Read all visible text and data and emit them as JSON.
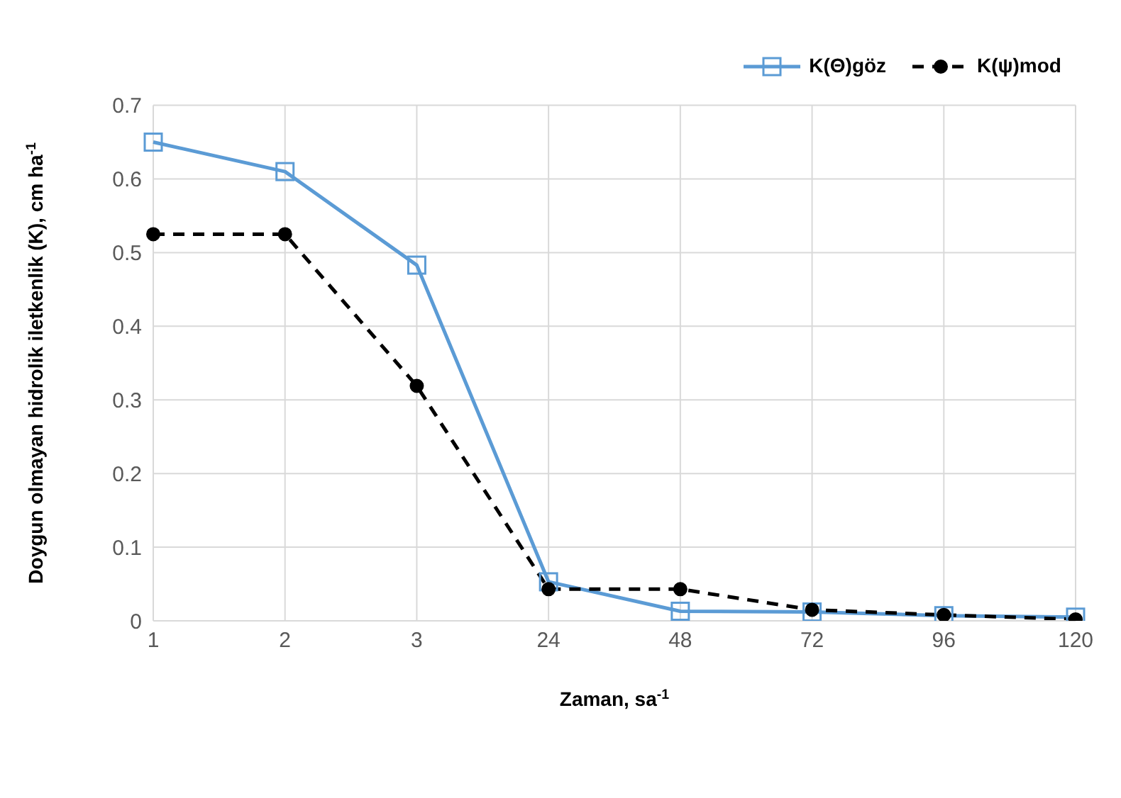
{
  "chart_data": {
    "type": "line",
    "xlabel": "Zaman, sa$^{-1}$",
    "ylabel": "Doygun olmayan hidrolik iletkenlik (K), cm ha$^{-1}$",
    "categories": [
      "1",
      "2",
      "3",
      "24",
      "48",
      "72",
      "96",
      "120"
    ],
    "series": [
      {
        "name": "K(Θ)göz",
        "color": "#5b9bd5",
        "marker": "square",
        "line_style": "solid",
        "values": [
          0.65,
          0.61,
          0.483,
          0.053,
          0.013,
          0.012,
          0.007,
          0.005
        ]
      },
      {
        "name": "K(ψ)mod",
        "color": "#000000",
        "marker": "circle",
        "line_style": "dashed",
        "values": [
          0.525,
          0.525,
          0.319,
          0.043,
          0.043,
          0.015,
          0.008,
          0.002
        ]
      }
    ],
    "ylim": [
      0,
      0.7
    ],
    "yticks": [
      0,
      0.1,
      0.2,
      0.3,
      0.4,
      0.5,
      0.6,
      0.7
    ],
    "grid": true,
    "legend": "top right"
  }
}
